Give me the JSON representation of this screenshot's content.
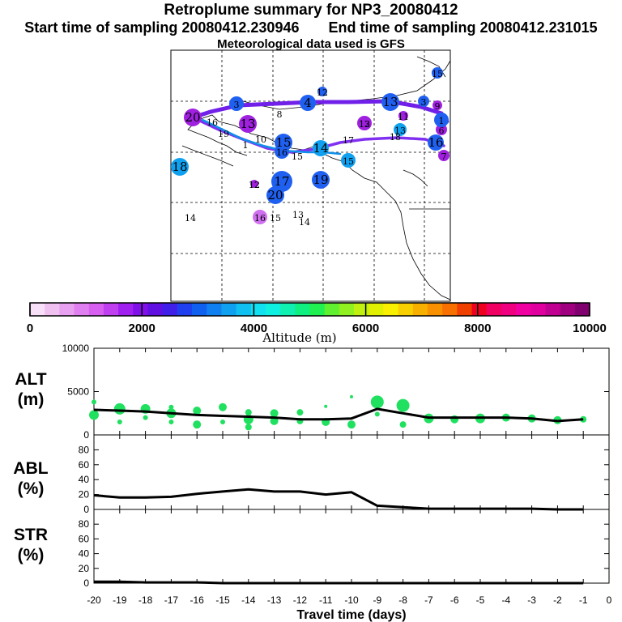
{
  "header": {
    "title": "Retroplume summary for NP3_20080412",
    "start_label": "Start time of sampling 20080412.230946",
    "end_label": "End time of sampling 20080412.231015",
    "met_label": "Meteorological data used is GFS"
  },
  "colorbar": {
    "ticks": [
      "0",
      "2000",
      "4000",
      "6000",
      "8000",
      "10000"
    ],
    "label": "Altitude (m)",
    "colors": [
      "#f8e0f8",
      "#f0c0f0",
      "#e8a0f0",
      "#e080f0",
      "#d860f0",
      "#c040f0",
      "#a020f0",
      "#8010e8",
      "#6010e0",
      "#4020e8",
      "#2040f0",
      "#1060f0",
      "#1080f0",
      "#10a0f0",
      "#10c0f0",
      "#10e0f0",
      "#10f0e0",
      "#10f0b0",
      "#10f080",
      "#20f050",
      "#60f030",
      "#90f020",
      "#c0f010",
      "#e0f000",
      "#f8f000",
      "#f8d000",
      "#f8b000",
      "#f89000",
      "#f87000",
      "#f04000",
      "#f00020",
      "#f00060",
      "#f00080",
      "#f000a0",
      "#e000a0",
      "#c00090",
      "#a00080",
      "#800070"
    ]
  },
  "map": {
    "labels": [
      {
        "text": "20",
        "c": "#a020e0"
      },
      {
        "text": "16",
        "c": "#2060f0"
      },
      {
        "text": "19",
        "c": "#10a0f0"
      },
      {
        "text": "1",
        "c": "#2060f0"
      },
      {
        "text": "10",
        "c": "#ffffff"
      },
      {
        "text": "13",
        "c": "#a020e0"
      },
      {
        "text": "15",
        "c": "#2060f0"
      },
      {
        "text": "16",
        "c": "#2060f0"
      },
      {
        "text": "15",
        "c": "#2060f0"
      },
      {
        "text": "14",
        "c": "#10a0f0"
      },
      {
        "text": "18",
        "c": "#10a0f0"
      },
      {
        "text": "12",
        "c": "#a020e0"
      },
      {
        "text": "17",
        "c": "#2060f0"
      },
      {
        "text": "20",
        "c": "#2060f0"
      },
      {
        "text": "19",
        "c": "#2060f0"
      },
      {
        "text": "12",
        "c": "#d070f0"
      },
      {
        "text": "16",
        "c": "#d070f0"
      },
      {
        "text": "15",
        "c": "#d070f0"
      },
      {
        "text": "13",
        "c": "#ffffff"
      },
      {
        "text": "14",
        "c": "#ffffff"
      },
      {
        "text": "14",
        "c": "#ffffff"
      },
      {
        "text": "8",
        "c": "#ffffff"
      },
      {
        "text": "4",
        "c": "#2060f0"
      },
      {
        "text": "3",
        "c": "#2060f0"
      },
      {
        "text": "12",
        "c": "#2060f0"
      },
      {
        "text": "13",
        "c": "#a020e0"
      },
      {
        "text": "15",
        "c": "#10a0f0"
      },
      {
        "text": "17",
        "c": "#ffffff"
      },
      {
        "text": "18",
        "c": "#ffffff"
      },
      {
        "text": "12",
        "c": "#a020e0"
      },
      {
        "text": "13",
        "c": "#10a0f0"
      },
      {
        "text": "11",
        "c": "#a020e0"
      },
      {
        "text": "13",
        "c": "#2060f0"
      },
      {
        "text": "7",
        "c": "#a020e0"
      },
      {
        "text": "6",
        "c": "#a020e0"
      },
      {
        "text": "9",
        "c": "#a020e0"
      },
      {
        "text": "15",
        "c": "#2060f0"
      },
      {
        "text": "3",
        "c": "#2060f0"
      },
      {
        "text": "16",
        "c": "#2060f0"
      },
      {
        "text": "1",
        "c": "#2060f0"
      }
    ]
  },
  "chart_data": [
    {
      "type": "line",
      "title": "ALT (m)",
      "panel_label_1": "ALT",
      "panel_label_2": "(m)",
      "ylim": [
        0,
        10000
      ],
      "yticks": [
        "0",
        "5000",
        "10000"
      ],
      "x": [
        -20,
        -19,
        -18,
        -17,
        -16,
        -15,
        -14,
        -13,
        -12,
        -11,
        -10,
        -9,
        -8,
        -7,
        -6,
        -5,
        -4,
        -3,
        -2,
        -1
      ],
      "values": [
        2900,
        2800,
        2700,
        2500,
        2300,
        2200,
        2100,
        2000,
        1800,
        1800,
        1900,
        3000,
        2500,
        2000,
        2000,
        2000,
        2000,
        1900,
        1600,
        1800
      ],
      "scatter": [
        {
          "x": -20,
          "y": 3800,
          "r": 3
        },
        {
          "x": -20,
          "y": 2300,
          "r": 6
        },
        {
          "x": -19,
          "y": 3000,
          "r": 7
        },
        {
          "x": -19,
          "y": 1500,
          "r": 3
        },
        {
          "x": -18,
          "y": 3000,
          "r": 6
        },
        {
          "x": -18,
          "y": 2000,
          "r": 3
        },
        {
          "x": -17,
          "y": 3200,
          "r": 3
        },
        {
          "x": -17,
          "y": 2500,
          "r": 6
        },
        {
          "x": -17,
          "y": 1500,
          "r": 3
        },
        {
          "x": -16,
          "y": 2800,
          "r": 5
        },
        {
          "x": -16,
          "y": 1200,
          "r": 5
        },
        {
          "x": -15,
          "y": 3200,
          "r": 5
        },
        {
          "x": -15,
          "y": 1500,
          "r": 3
        },
        {
          "x": -14,
          "y": 2600,
          "r": 4
        },
        {
          "x": -14,
          "y": 1800,
          "r": 6
        },
        {
          "x": -14,
          "y": 900,
          "r": 4
        },
        {
          "x": -13,
          "y": 2500,
          "r": 5
        },
        {
          "x": -13,
          "y": 1600,
          "r": 5
        },
        {
          "x": -12,
          "y": 2600,
          "r": 4
        },
        {
          "x": -12,
          "y": 1600,
          "r": 4
        },
        {
          "x": -11,
          "y": 3300,
          "r": 2
        },
        {
          "x": -11,
          "y": 1500,
          "r": 5
        },
        {
          "x": -10,
          "y": 4400,
          "r": 2
        },
        {
          "x": -10,
          "y": 1200,
          "r": 5
        },
        {
          "x": -9,
          "y": 3800,
          "r": 8
        },
        {
          "x": -9,
          "y": 2400,
          "r": 3
        },
        {
          "x": -8,
          "y": 3400,
          "r": 8
        },
        {
          "x": -8,
          "y": 1200,
          "r": 4
        },
        {
          "x": -7,
          "y": 1900,
          "r": 6
        },
        {
          "x": -6,
          "y": 1800,
          "r": 5
        },
        {
          "x": -5,
          "y": 1900,
          "r": 6
        },
        {
          "x": -4,
          "y": 2000,
          "r": 5
        },
        {
          "x": -3,
          "y": 1900,
          "r": 5
        },
        {
          "x": -2,
          "y": 1700,
          "r": 5
        },
        {
          "x": -1,
          "y": 1800,
          "r": 4
        }
      ]
    },
    {
      "type": "line",
      "title": "ABL (%)",
      "panel_label_1": "ABL",
      "panel_label_2": "(%)",
      "ylim": [
        0,
        100
      ],
      "yticks": [
        "0",
        "20",
        "40",
        "60",
        "80"
      ],
      "x": [
        -20,
        -19,
        -18,
        -17,
        -16,
        -15,
        -14,
        -13,
        -12,
        -11,
        -10,
        -9,
        -8,
        -7,
        -6,
        -5,
        -4,
        -3,
        -2,
        -1
      ],
      "values": [
        19,
        16,
        16,
        17,
        21,
        24,
        27,
        24,
        24,
        20,
        23,
        5,
        3,
        1,
        1,
        1,
        1,
        1,
        0,
        0
      ]
    },
    {
      "type": "line",
      "title": "STR (%)",
      "panel_label_1": "STR",
      "panel_label_2": "(%)",
      "ylim": [
        0,
        100
      ],
      "yticks": [
        "0",
        "20",
        "40",
        "60",
        "80"
      ],
      "x": [
        -20,
        -19,
        -18,
        -17,
        -16,
        -15,
        -14,
        -13,
        -12,
        -11,
        -10,
        -9,
        -8,
        -7,
        -6,
        -5,
        -4,
        -3,
        -2,
        -1
      ],
      "values": [
        2,
        2,
        1,
        1,
        1,
        0,
        0,
        0,
        0,
        0,
        0,
        0,
        0,
        0,
        0,
        0,
        0,
        0,
        0,
        0
      ]
    }
  ],
  "xaxis": {
    "ticks": [
      "-20",
      "-19",
      "-18",
      "-17",
      "-16",
      "-15",
      "-14",
      "-13",
      "-12",
      "-11",
      "-10",
      "-9",
      "-8",
      "-7",
      "-6",
      "-5",
      "-4",
      "-3",
      "-2",
      "-1",
      "0"
    ],
    "label": "Travel time (days)"
  }
}
